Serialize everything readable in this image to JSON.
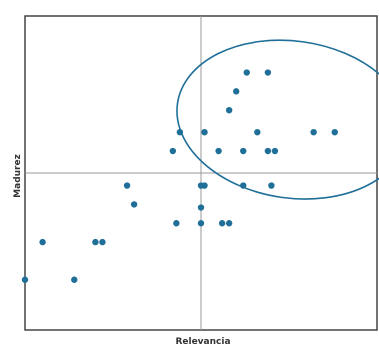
{
  "chart_data": {
    "type": "scatter",
    "xlabel": "Relevancia",
    "ylabel": "Madurez",
    "xlim": [
      0,
      10
    ],
    "ylim": [
      0,
      10
    ],
    "grid": false,
    "quadrant_divider": {
      "x": 5,
      "y": 5
    },
    "highlight_ellipse": {
      "cx": 7.6,
      "cy": 6.7,
      "rx": 3.3,
      "ry": 2.5
    },
    "colors": {
      "points": "#1f6f99",
      "frame": "#444444",
      "divider": "#9a9a9a",
      "ellipse": "#1f6f99"
    },
    "points": [
      {
        "x": 6.3,
        "y": 8.2
      },
      {
        "x": 6.9,
        "y": 8.2
      },
      {
        "x": 6.0,
        "y": 7.6
      },
      {
        "x": 5.8,
        "y": 7.0
      },
      {
        "x": 4.4,
        "y": 6.3
      },
      {
        "x": 5.1,
        "y": 6.3
      },
      {
        "x": 6.6,
        "y": 6.3
      },
      {
        "x": 8.2,
        "y": 6.3
      },
      {
        "x": 8.8,
        "y": 6.3
      },
      {
        "x": 4.2,
        "y": 5.7
      },
      {
        "x": 5.5,
        "y": 5.7
      },
      {
        "x": 6.2,
        "y": 5.7
      },
      {
        "x": 6.9,
        "y": 5.7
      },
      {
        "x": 7.1,
        "y": 5.7
      },
      {
        "x": 2.9,
        "y": 4.6
      },
      {
        "x": 5.0,
        "y": 4.6
      },
      {
        "x": 5.1,
        "y": 4.6
      },
      {
        "x": 6.2,
        "y": 4.6
      },
      {
        "x": 7.0,
        "y": 4.6
      },
      {
        "x": 3.1,
        "y": 4.0
      },
      {
        "x": 5.0,
        "y": 3.9
      },
      {
        "x": 4.3,
        "y": 3.4
      },
      {
        "x": 5.0,
        "y": 3.4
      },
      {
        "x": 5.6,
        "y": 3.4
      },
      {
        "x": 5.8,
        "y": 3.4
      },
      {
        "x": 0.5,
        "y": 2.8
      },
      {
        "x": 2.0,
        "y": 2.8
      },
      {
        "x": 2.2,
        "y": 2.8
      },
      {
        "x": 0.0,
        "y": 1.6
      },
      {
        "x": 1.4,
        "y": 1.6
      }
    ]
  }
}
